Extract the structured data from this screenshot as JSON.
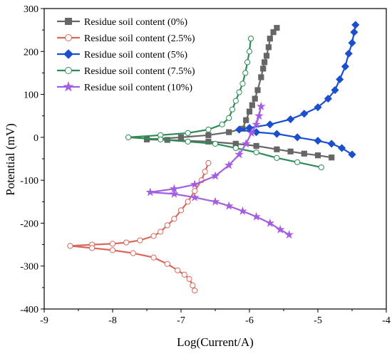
{
  "chart_data": {
    "type": "line",
    "xlabel": "Log(Current/A)",
    "ylabel": "Potential (mV)",
    "xlim": [
      -9,
      -4
    ],
    "ylim": [
      -400,
      300
    ],
    "x_ticks": [
      "-9",
      "-8",
      "-7",
      "-6",
      "-5",
      "-4"
    ],
    "y_ticks": [
      "300",
      "200",
      "100",
      "0",
      "-100",
      "-200",
      "-300",
      "-400"
    ],
    "legend_placement": "top-left",
    "grid": false,
    "series": [
      {
        "name": "Residue soil content (0%)",
        "color": "#666666",
        "marker": "square",
        "marker_fill": "filled",
        "x": [
          -5.6,
          -5.65,
          -5.7,
          -5.72,
          -5.75,
          -5.78,
          -5.8,
          -5.83,
          -5.88,
          -5.92,
          -5.96,
          -6.0,
          -6.05,
          -6.1,
          -6.3,
          -6.6,
          -7.0,
          -7.5,
          -7.2,
          -6.6,
          -6.2,
          -5.9,
          -5.6,
          -5.4,
          -5.2,
          -5.0,
          -4.8
        ],
        "y": [
          255,
          245,
          230,
          210,
          190,
          175,
          160,
          140,
          110,
          90,
          75,
          60,
          40,
          20,
          12,
          5,
          0,
          -5,
          -6,
          -10,
          -15,
          -20,
          -28,
          -33,
          -38,
          -42,
          -47
        ]
      },
      {
        "name": "Residue soil content (2.5%)",
        "color": "#d9685a",
        "marker": "circle",
        "marker_fill": "open",
        "x": [
          -6.6,
          -6.65,
          -6.7,
          -6.8,
          -6.9,
          -7.0,
          -7.1,
          -7.2,
          -7.3,
          -7.4,
          -7.6,
          -7.8,
          -8.0,
          -8.3,
          -8.62,
          -8.3,
          -8.0,
          -7.7,
          -7.4,
          -7.2,
          -7.05,
          -6.95,
          -6.88,
          -6.83,
          -6.8
        ],
        "y": [
          -60,
          -80,
          -100,
          -125,
          -150,
          -170,
          -190,
          -205,
          -220,
          -230,
          -240,
          -245,
          -248,
          -250,
          -253,
          -258,
          -263,
          -270,
          -280,
          -295,
          -310,
          -320,
          -330,
          -345,
          -357
        ]
      },
      {
        "name": "Residue soil content (5%)",
        "color": "#1a4fcf",
        "marker": "diamond",
        "marker_fill": "filled",
        "x": [
          -4.45,
          -4.47,
          -4.5,
          -4.55,
          -4.6,
          -4.68,
          -4.75,
          -4.85,
          -5.0,
          -5.2,
          -5.4,
          -5.7,
          -6.0,
          -6.15,
          -5.9,
          -5.6,
          -5.3,
          -5.0,
          -4.8,
          -4.65,
          -4.5
        ],
        "y": [
          262,
          245,
          220,
          195,
          165,
          135,
          110,
          90,
          70,
          55,
          42,
          30,
          22,
          18,
          12,
          8,
          0,
          -8,
          -15,
          -25,
          -40
        ]
      },
      {
        "name": "Residue soil content (7.5%)",
        "color": "#2e8b57",
        "marker": "circle",
        "marker_fill": "open",
        "x": [
          -5.98,
          -6.0,
          -6.03,
          -6.06,
          -6.1,
          -6.15,
          -6.2,
          -6.25,
          -6.3,
          -6.4,
          -6.6,
          -6.9,
          -7.3,
          -7.77,
          -7.3,
          -6.9,
          -6.5,
          -6.2,
          -5.9,
          -5.6,
          -5.3,
          -4.95
        ],
        "y": [
          230,
          200,
          175,
          150,
          125,
          105,
          85,
          65,
          45,
          30,
          18,
          10,
          5,
          0,
          -5,
          -10,
          -15,
          -25,
          -35,
          -48,
          -58,
          -70
        ]
      },
      {
        "name": "Residue soil content (10%)",
        "color": "#a45fe0",
        "marker": "star",
        "marker_fill": "filled",
        "x": [
          -5.83,
          -5.86,
          -5.9,
          -5.97,
          -6.05,
          -6.15,
          -6.3,
          -6.5,
          -6.8,
          -7.1,
          -7.45,
          -7.1,
          -6.8,
          -6.5,
          -6.3,
          -6.1,
          -5.9,
          -5.7,
          -5.55,
          -5.42
        ],
        "y": [
          72,
          50,
          30,
          10,
          -15,
          -40,
          -65,
          -90,
          -110,
          -120,
          -128,
          -132,
          -140,
          -150,
          -160,
          -172,
          -185,
          -200,
          -215,
          -227
        ]
      }
    ]
  }
}
